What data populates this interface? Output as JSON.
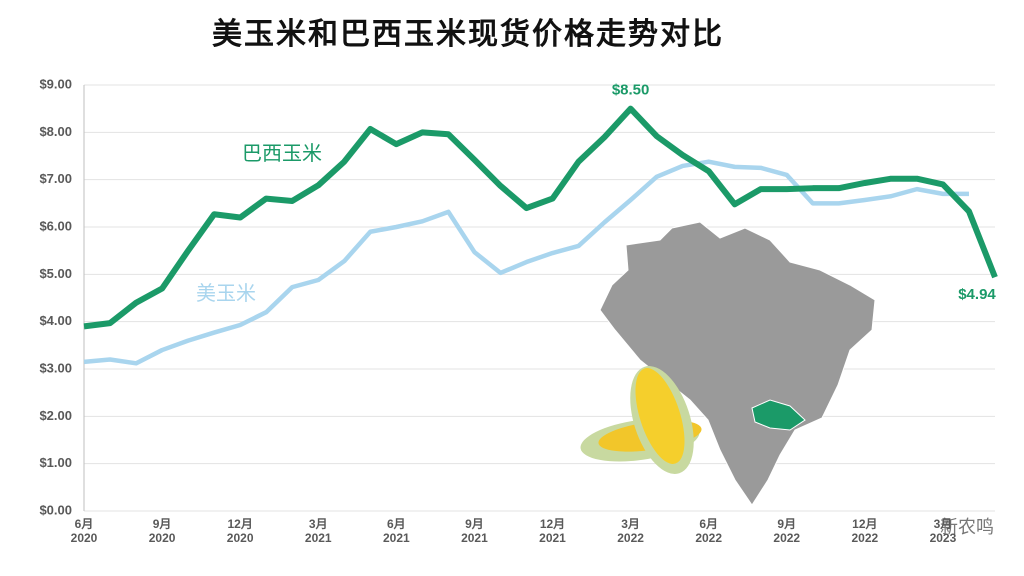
{
  "chart_data": {
    "type": "line",
    "title": "美玉米和巴西玉米现货价格走势对比",
    "categories": [
      "6月\n2020",
      null,
      null,
      "9月\n2020",
      null,
      null,
      "12月\n2020",
      null,
      null,
      "3月\n2021",
      null,
      null,
      "6月\n2021",
      null,
      null,
      "9月\n2021",
      null,
      null,
      "12月\n2021",
      null,
      null,
      "3月\n2022",
      null,
      null,
      "6月\n2022",
      null,
      null,
      "9月\n2022",
      null,
      null,
      "12月\n2022",
      null,
      null,
      "3月\n2023",
      null,
      null
    ],
    "series": [
      {
        "name": "巴西玉米",
        "color": "#1b9a68",
        "values": [
          3.9,
          3.97,
          4.4,
          4.7,
          5.5,
          6.27,
          6.2,
          6.6,
          6.55,
          6.88,
          7.38,
          8.07,
          7.75,
          8.0,
          7.96,
          7.42,
          6.87,
          6.4,
          6.6,
          7.38,
          7.9,
          8.5,
          7.92,
          7.52,
          7.18,
          6.48,
          6.8,
          6.8,
          6.82,
          6.82,
          6.93,
          7.02,
          7.02,
          6.9,
          6.33,
          4.94
        ],
        "value_labels": [
          null,
          null,
          null,
          null,
          null,
          null,
          null,
          null,
          null,
          null,
          null,
          null,
          null,
          null,
          null,
          null,
          null,
          null,
          null,
          null,
          null,
          "$8.50",
          null,
          null,
          null,
          null,
          null,
          null,
          null,
          null,
          null,
          null,
          null,
          null,
          null,
          "$4.94"
        ]
      },
      {
        "name": "美玉米",
        "color": "#a9d5ee",
        "values": [
          3.15,
          3.2,
          3.12,
          3.4,
          3.6,
          3.77,
          3.93,
          4.2,
          4.73,
          4.88,
          5.28,
          5.9,
          6.0,
          6.12,
          6.32,
          5.47,
          5.03,
          5.26,
          5.45,
          5.6,
          6.1,
          6.57,
          7.06,
          7.29,
          7.38,
          7.27,
          7.25,
          7.1,
          6.5,
          6.5,
          6.57,
          6.65,
          6.8,
          6.7,
          6.7,
          null
        ]
      }
    ],
    "ylim": [
      0,
      9
    ],
    "yticks": [
      {
        "value": 0,
        "label": "$0.00"
      },
      {
        "value": 1,
        "label": "$1.00"
      },
      {
        "value": 2,
        "label": "$2.00"
      },
      {
        "value": 3,
        "label": "$3.00"
      },
      {
        "value": 4,
        "label": "$4.00"
      },
      {
        "value": 5,
        "label": "$5.00"
      },
      {
        "value": 6,
        "label": "$6.00"
      },
      {
        "value": 7,
        "label": "$7.00"
      },
      {
        "value": 8,
        "label": "$8.00"
      },
      {
        "value": 9,
        "label": "$9.00"
      }
    ],
    "grid": true,
    "watermark": "新农鸣"
  }
}
